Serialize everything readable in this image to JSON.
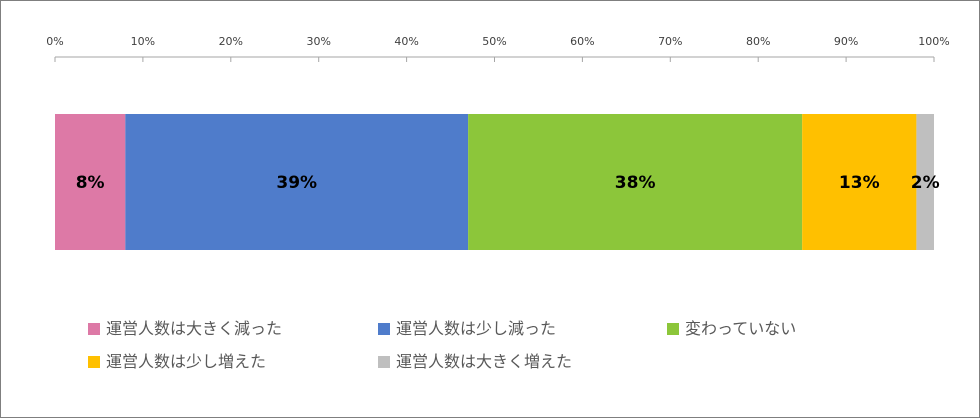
{
  "chart_data": {
    "type": "bar",
    "orientation": "horizontal-stacked-100",
    "x_ticks": [
      "0%",
      "10%",
      "20%",
      "30%",
      "40%",
      "50%",
      "60%",
      "70%",
      "80%",
      "90%",
      "100%"
    ],
    "xlim": [
      0,
      100
    ],
    "grid": false,
    "legend_position": "bottom",
    "series": [
      {
        "name": "運営人数は大きく減った",
        "value": 8,
        "label": "8%",
        "color": "#dd79a6"
      },
      {
        "name": "運営人数は少し減った",
        "value": 39,
        "label": "39%",
        "color": "#4f7ccb"
      },
      {
        "name": "変わっていない",
        "value": 38,
        "label": "38%",
        "color": "#8cc63a"
      },
      {
        "name": "運営人数は少し増えた",
        "value": 13,
        "label": "13%",
        "color": "#ffc000"
      },
      {
        "name": "運営人数は大きく増えた",
        "value": 2,
        "label": "2%",
        "color": "#bfbfbf"
      }
    ]
  }
}
